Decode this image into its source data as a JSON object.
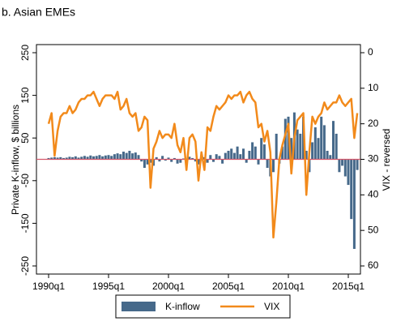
{
  "chart_data": {
    "type": "bar_line",
    "title": "b. Asian EMEs",
    "ylabel": "Private K-inflow, $ billions",
    "y2label": "VIX - reversed",
    "categories": [
      "1990q1",
      null,
      null,
      null,
      null,
      null,
      null,
      null,
      null,
      null,
      null,
      null,
      null,
      null,
      null,
      null,
      null,
      null,
      null,
      null,
      "1995q1",
      null,
      null,
      null,
      null,
      null,
      null,
      null,
      null,
      null,
      null,
      null,
      null,
      null,
      null,
      null,
      null,
      null,
      null,
      null,
      "2000q1",
      null,
      null,
      null,
      null,
      null,
      null,
      null,
      null,
      null,
      null,
      null,
      null,
      null,
      null,
      null,
      null,
      null,
      null,
      null,
      "2005q1",
      null,
      null,
      null,
      null,
      null,
      null,
      null,
      null,
      null,
      null,
      null,
      null,
      null,
      null,
      null,
      null,
      null,
      null,
      null,
      "2010q1",
      null,
      null,
      null,
      null,
      null,
      null,
      null,
      null,
      null,
      null,
      null,
      null,
      null,
      null,
      null,
      null,
      null,
      null,
      null,
      "2015q1",
      null,
      null,
      null
    ],
    "series": [
      {
        "name": "K-inflow",
        "kind": "bar",
        "color": "#46698a",
        "values": [
          3,
          4,
          5,
          4,
          5,
          3,
          4,
          6,
          5,
          7,
          4,
          6,
          8,
          6,
          9,
          7,
          8,
          10,
          7,
          9,
          10,
          8,
          12,
          14,
          12,
          18,
          15,
          20,
          14,
          16,
          10,
          -5,
          -20,
          -12,
          -8,
          -15,
          5,
          -5,
          8,
          -3,
          4,
          -6,
          3,
          -10,
          -8,
          2,
          -4,
          6,
          3,
          -5,
          -12,
          4,
          5,
          -8,
          10,
          -6,
          12,
          8,
          -10,
          15,
          20,
          25,
          15,
          30,
          12,
          25,
          -8,
          20,
          40,
          30,
          -12,
          50,
          35,
          -20,
          -40,
          -30,
          60,
          -10,
          30,
          95,
          100,
          50,
          110,
          70,
          60,
          100,
          20,
          -30,
          40,
          75,
          50,
          100,
          80,
          20,
          10,
          90,
          60,
          -30,
          -15,
          -40,
          -60,
          -140,
          -210,
          -25
        ]
      },
      {
        "name": "VIX",
        "kind": "line",
        "axis": "y2",
        "color": "#f28a1b",
        "values": [
          20,
          17,
          29,
          22,
          18,
          17,
          17,
          15,
          17,
          16,
          14,
          13,
          13,
          12,
          12,
          11,
          13,
          15,
          13,
          12,
          12,
          12,
          13,
          11,
          16,
          15,
          13,
          17,
          18,
          17,
          22,
          21,
          18,
          19,
          38,
          27,
          25,
          22,
          24,
          23,
          23,
          24,
          20,
          26,
          28,
          24,
          33,
          24,
          23,
          25,
          36,
          28,
          33,
          21,
          22,
          18,
          15,
          16,
          15,
          14,
          12,
          13,
          12,
          12,
          11,
          14,
          12,
          11,
          13,
          14,
          21,
          20,
          25,
          22,
          28,
          52,
          42,
          30,
          26,
          23,
          20,
          34,
          24,
          19,
          18,
          17,
          40,
          28,
          18,
          20,
          18,
          17,
          14,
          16,
          15,
          14,
          14,
          12,
          14,
          15,
          14,
          13,
          24,
          17
        ]
      }
    ],
    "ylim": [
      -250,
      250
    ],
    "yticks": [
      -250,
      -150,
      -50,
      50,
      150,
      250
    ],
    "y2lim": [
      0,
      60
    ],
    "y2ticks": [
      0,
      10,
      20,
      30,
      40,
      50,
      60
    ],
    "y2_reversed": true,
    "reference_line_color": "#d4586b"
  }
}
